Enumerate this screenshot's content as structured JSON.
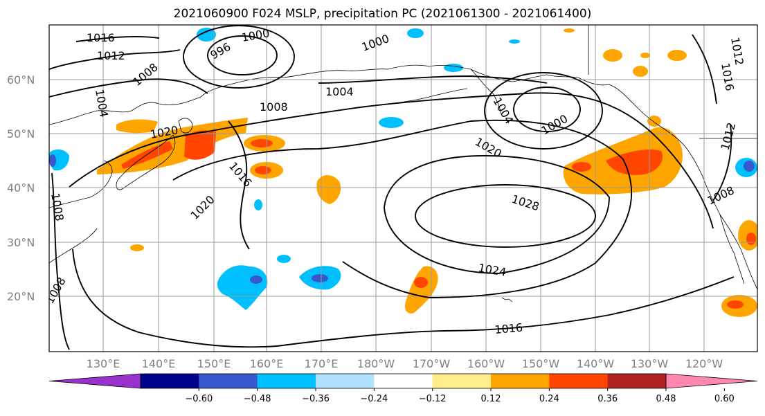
{
  "title": "2021060900 F024 MSLP, precipitation PC (2021061300 - 2021061400)",
  "lat_labels": [
    "60°N",
    "50°N",
    "40°N",
    "30°N",
    "20°N"
  ],
  "lon_labels": [
    "130°E",
    "140°E",
    "150°E",
    "160°E",
    "170°E",
    "180°W",
    "170°W",
    "160°W",
    "150°W",
    "140°W",
    "130°W",
    "120°W"
  ],
  "contour_labels": [
    "1016",
    "1012",
    "1008",
    "1004",
    "996",
    "1000",
    "1000",
    "1004",
    "1008",
    "1004",
    "1000",
    "1012",
    "1016",
    "1020",
    "1020",
    "1028",
    "1024",
    "1016",
    "1008",
    "1016",
    "1012",
    "1008",
    "1008",
    "1020"
  ],
  "colorbar": {
    "colors": [
      "#9932cc",
      "#00008b",
      "#3858cc",
      "#00bfff",
      "#b0e2ff",
      "#ffffff",
      "#ffec8b",
      "#ffa500",
      "#ff4500",
      "#b22222",
      "#ff88b0"
    ],
    "tick_labels": [
      "−0.60",
      "−0.48",
      "−0.36",
      "−0.24",
      "−0.12",
      "0.12",
      "0.24",
      "0.36",
      "0.48",
      "0.60"
    ]
  },
  "legend_colors": {
    "neg_strong": "#3858cc",
    "neg": "#00bfff",
    "neg_light": "#b0e2ff",
    "pos_light": "#ffec8b",
    "pos": "#ffa500",
    "pos_strong": "#ff4500"
  }
}
